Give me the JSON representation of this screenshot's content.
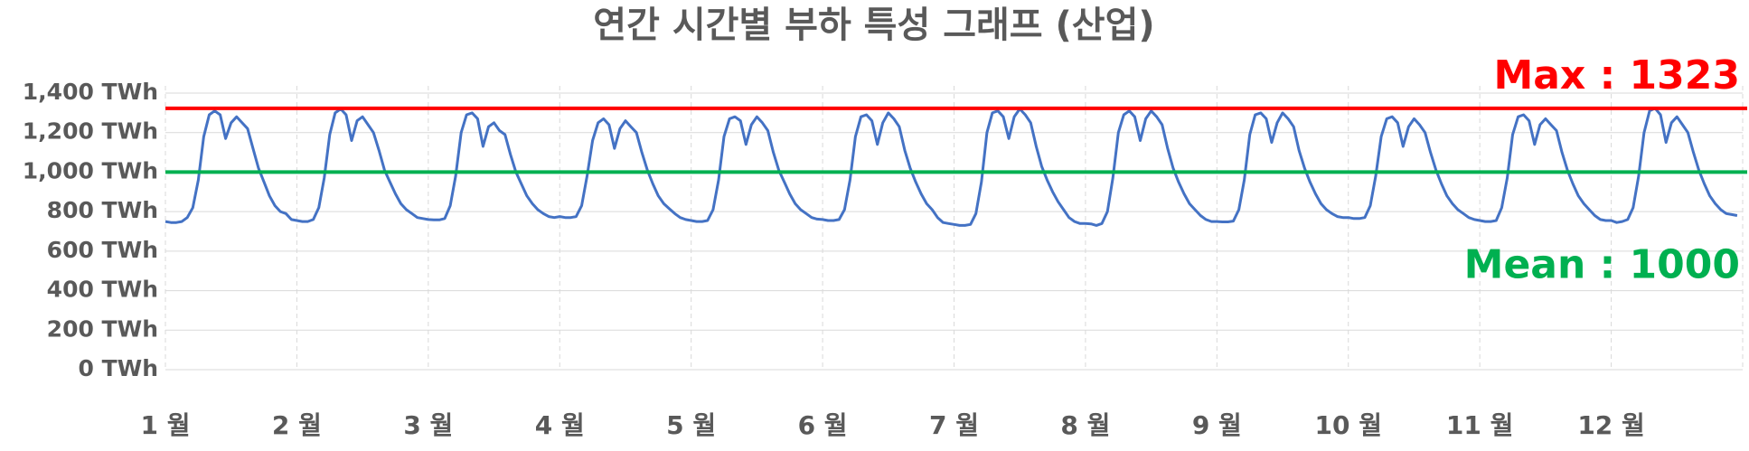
{
  "chart_data": {
    "type": "line",
    "title": "연간 시간별 부하 특성 그래프 (산업)",
    "categories": [
      "1 월",
      "2 월",
      "3 월",
      "4 월",
      "5 월",
      "6 월",
      "7 월",
      "8 월",
      "9 월",
      "10 월",
      "11 월",
      "12 월"
    ],
    "color": "#4472c4",
    "values": [
      [
        750,
        745,
        745,
        750,
        770,
        820,
        960,
        1180,
        1290,
        1310,
        1290,
        1170,
        1250,
        1280,
        1250,
        1220,
        1120,
        1020,
        950,
        880,
        830,
        800,
        790,
        760
      ],
      [
        755,
        750,
        750,
        760,
        820,
        970,
        1190,
        1300,
        1320,
        1290,
        1160,
        1260,
        1280,
        1240,
        1200,
        1110,
        1010,
        950,
        890,
        840,
        810,
        790,
        770,
        765
      ],
      [
        760,
        758,
        758,
        765,
        830,
        980,
        1200,
        1290,
        1300,
        1270,
        1130,
        1230,
        1250,
        1210,
        1190,
        1090,
        1000,
        940,
        880,
        840,
        810,
        790,
        775,
        770
      ],
      [
        775,
        770,
        770,
        775,
        830,
        980,
        1160,
        1250,
        1270,
        1240,
        1120,
        1220,
        1260,
        1230,
        1200,
        1100,
        1010,
        940,
        880,
        840,
        815,
        790,
        770,
        760
      ],
      [
        755,
        750,
        750,
        755,
        810,
        960,
        1180,
        1270,
        1280,
        1260,
        1140,
        1240,
        1280,
        1250,
        1210,
        1100,
        1010,
        950,
        890,
        840,
        810,
        790,
        770,
        762
      ],
      [
        760,
        755,
        755,
        760,
        810,
        960,
        1180,
        1280,
        1290,
        1260,
        1140,
        1250,
        1300,
        1270,
        1230,
        1110,
        1020,
        950,
        890,
        840,
        810,
        770,
        745,
        740
      ],
      [
        735,
        730,
        730,
        735,
        790,
        950,
        1200,
        1300,
        1310,
        1280,
        1170,
        1280,
        1320,
        1290,
        1250,
        1130,
        1030,
        960,
        900,
        850,
        810,
        770,
        750,
        740
      ],
      [
        740,
        738,
        730,
        740,
        800,
        970,
        1200,
        1290,
        1310,
        1280,
        1160,
        1270,
        1310,
        1280,
        1240,
        1120,
        1020,
        950,
        890,
        840,
        810,
        780,
        760,
        750
      ],
      [
        750,
        748,
        748,
        752,
        810,
        960,
        1190,
        1290,
        1300,
        1270,
        1150,
        1250,
        1300,
        1270,
        1230,
        1110,
        1020,
        950,
        890,
        840,
        810,
        790,
        775,
        770
      ],
      [
        770,
        765,
        765,
        770,
        830,
        980,
        1180,
        1270,
        1280,
        1250,
        1130,
        1230,
        1270,
        1240,
        1200,
        1100,
        1010,
        940,
        880,
        840,
        810,
        790,
        770,
        760
      ],
      [
        755,
        750,
        750,
        755,
        820,
        970,
        1190,
        1280,
        1290,
        1260,
        1140,
        1240,
        1270,
        1240,
        1210,
        1100,
        1010,
        940,
        880,
        840,
        810,
        780,
        760,
        755
      ],
      [
        755,
        745,
        750,
        760,
        820,
        980,
        1200,
        1310,
        1323,
        1290,
        1150,
        1250,
        1280,
        1240,
        1200,
        1100,
        1010,
        940,
        880,
        840,
        810,
        790,
        785,
        780
      ]
    ],
    "ylim": [
      0,
      1400
    ],
    "yticks": [
      {
        "value": 0,
        "label": "0 TWh"
      },
      {
        "value": 200,
        "label": "200 TWh"
      },
      {
        "value": 400,
        "label": "400 TWh"
      },
      {
        "value": 600,
        "label": "600 TWh"
      },
      {
        "value": 800,
        "label": "800 TWh"
      },
      {
        "value": 1000,
        "label": "1,000 TWh"
      },
      {
        "value": 1200,
        "label": "1,200 TWh"
      },
      {
        "value": 1400,
        "label": "1,400 TWh"
      }
    ],
    "grid": true,
    "reference_lines": [
      {
        "value": 1323,
        "label": "Max : 1323",
        "color": "#ff0000"
      },
      {
        "value": 1000,
        "label": "Mean : 1000",
        "color": "#00b050"
      }
    ]
  }
}
